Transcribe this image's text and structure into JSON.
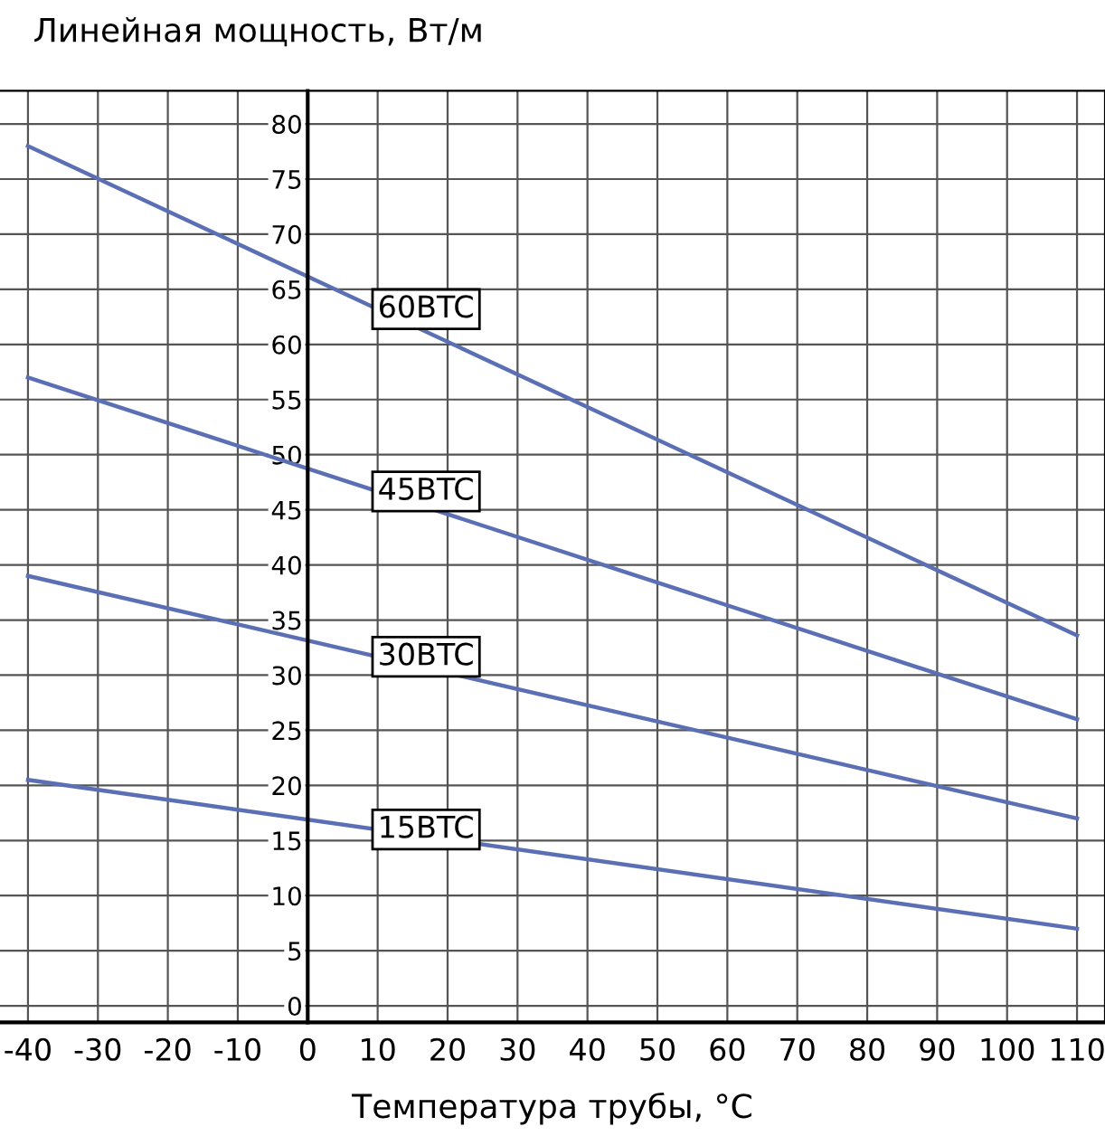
{
  "chart_data": {
    "type": "line",
    "ylabel": "Линейная мощность, Вт/м",
    "xlabel": "Температура трубы, °C",
    "xlim": [
      -44,
      114
    ],
    "ylim": [
      -1.5,
      83
    ],
    "xticks": [
      -40,
      -30,
      -20,
      -10,
      0,
      10,
      20,
      30,
      40,
      50,
      60,
      70,
      80,
      90,
      100,
      110
    ],
    "yticks": [
      0,
      5,
      10,
      15,
      20,
      25,
      30,
      35,
      40,
      45,
      50,
      55,
      60,
      65,
      70,
      75,
      80
    ],
    "grid": true,
    "legend": false,
    "marker": "none",
    "line_style": "solid",
    "x": [
      -40,
      110
    ],
    "series": [
      {
        "name": "60BTC",
        "color": "#5b6fb5",
        "values": [
          78,
          33.6
        ]
      },
      {
        "name": "45BTC",
        "color": "#5b6fb5",
        "values": [
          57,
          26
        ]
      },
      {
        "name": "30BTC",
        "color": "#5b6fb5",
        "values": [
          39,
          17
        ]
      },
      {
        "name": "15BTC",
        "color": "#5b6fb5",
        "values": [
          20.5,
          7
        ]
      }
    ]
  }
}
